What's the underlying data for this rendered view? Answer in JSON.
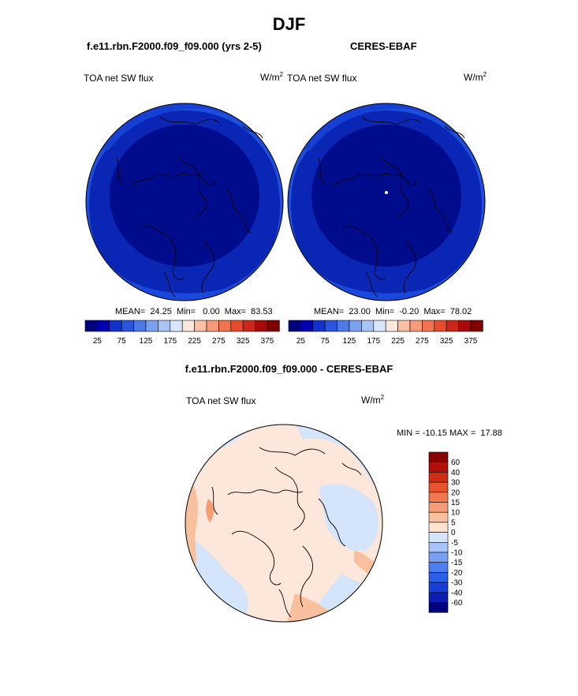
{
  "page_title": "DJF",
  "panel_left": {
    "case": "f.e11.rbn.F2000.f09_f09.000 (yrs 2-5)",
    "variable": "TOA net SW flux",
    "units_base": "W/m",
    "units_exp": "2",
    "stats": "MEAN=  24.25  Min=   0.00  Max=  83.53"
  },
  "panel_right": {
    "case": "CERES-EBAF",
    "variable": "TOA net SW flux",
    "units_base": "W/m",
    "units_exp": "2",
    "stats": "MEAN=  23.00  Min=  -0.20  Max=  78.02"
  },
  "panel_diff": {
    "case": "f.e11.rbn.F2000.f09_f09.000 - CERES-EBAF",
    "variable": "TOA net SW flux",
    "units_base": "W/m",
    "units_exp": "2",
    "stats": "MIN = -10.15 MAX =  17.88"
  },
  "colorbar_main": {
    "colors": [
      "#00007f",
      "#0000b0",
      "#1133cc",
      "#2a55dd",
      "#4d7ae8",
      "#7aa0f0",
      "#a8c4f5",
      "#d8e6fa",
      "#fde6da",
      "#f9c0a6",
      "#f69b79",
      "#f1734f",
      "#e84a2d",
      "#cc2616",
      "#a80a0a",
      "#7f0000"
    ],
    "tick_labels": [
      "25",
      "75",
      "125",
      "175",
      "225",
      "275",
      "325",
      "375"
    ]
  },
  "colorbar_diff": {
    "colors": [
      "#00007f",
      "#0a1fb0",
      "#1a3fd8",
      "#2c5fe8",
      "#4c7ef0",
      "#7aa0f4",
      "#a8c3f7",
      "#d4e4fb",
      "#fde2d0",
      "#f9c0a0",
      "#f59d74",
      "#f2784e",
      "#e8532c",
      "#d02e12",
      "#b01008",
      "#8b0000"
    ],
    "tick_labels": [
      "60",
      "40",
      "30",
      "20",
      "15",
      "10",
      "5",
      "0",
      "-5",
      "-10",
      "-15",
      "-20",
      "-30",
      "-40",
      "-60"
    ]
  }
}
